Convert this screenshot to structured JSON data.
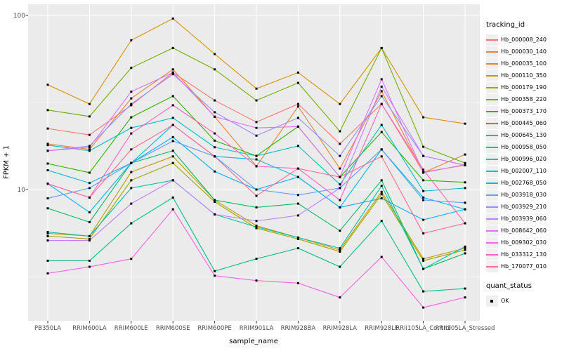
{
  "figure": {
    "y_axis": {
      "label": "FPKM + 1",
      "ticks": [
        {
          "value": 100,
          "label": "100"
        },
        {
          "value": 10,
          "label": "10"
        }
      ]
    },
    "x_axis": {
      "label": "sample_name"
    }
  },
  "legend_tracking": {
    "title": "tracking_id"
  },
  "legend_quant": {
    "title": "quant_status",
    "items": [
      {
        "label": "OK",
        "marker": "black-square"
      }
    ]
  },
  "chart_data": {
    "type": "line",
    "title": "",
    "xlabel": "sample_name",
    "ylabel": "FPKM + 1",
    "y_scale": "log10",
    "ylim": [
      1.78,
      116
    ],
    "y_ticks": [
      10,
      100
    ],
    "y_minor": [
      3.162,
      31.62
    ],
    "grid": true,
    "legend_position": "right",
    "point_shape": "black-square",
    "point_legend": {
      "title": "quant_status",
      "label": "OK"
    },
    "categories": [
      "PB350LA",
      "RRIM600LA",
      "RRIM600LE",
      "RRIM600SE",
      "RRIM600PE",
      "RRIM901LA",
      "RRIM928BA",
      "RRIM928LA",
      "RRIM928LE",
      "RRII105LA_Control",
      "RRII105LA_Stressed"
    ],
    "series": [
      {
        "name": "Hb_000008_240",
        "color": "#F8766D",
        "values": [
          22.4,
          20.6,
          30.5,
          47,
          32.5,
          24.4,
          31,
          18.3,
          31,
          12.6,
          13.8
        ]
      },
      {
        "name": "Hb_000030_140",
        "color": "#EA8331",
        "values": [
          18.3,
          17,
          33.4,
          49,
          26.2,
          13.6,
          30,
          13.2,
          36.7,
          12.5,
          15.9
        ]
      },
      {
        "name": "Hb_000035_100",
        "color": "#D89000",
        "values": [
          40,
          31,
          72,
          96,
          60,
          38,
          47,
          31,
          65,
          26,
          23.9
        ]
      },
      {
        "name": "Hb_000110_350",
        "color": "#BF9C00",
        "values": [
          5.6,
          5.4,
          12.6,
          15.5,
          8.7,
          6.2,
          5.3,
          4.5,
          9.7,
          4,
          4.6
        ]
      },
      {
        "name": "Hb_000179_190",
        "color": "#9DA700",
        "values": [
          5.4,
          5.2,
          11.3,
          14.2,
          8.5,
          6,
          5.2,
          4.4,
          9.4,
          3.9,
          4.5
        ]
      },
      {
        "name": "Hb_000358_220",
        "color": "#6FB000",
        "values": [
          28.6,
          26.3,
          50,
          65,
          49,
          32.5,
          41,
          21.6,
          65,
          17.6,
          14.2
        ]
      },
      {
        "name": "Hb_000373_170",
        "color": "#2CB600",
        "values": [
          14.1,
          12.5,
          26,
          34.4,
          19.1,
          15.6,
          23,
          11.8,
          21.4,
          11.3,
          11
        ]
      },
      {
        "name": "Hb_000445_060",
        "color": "#00BD5C",
        "values": [
          7.8,
          6.5,
          14.2,
          16.7,
          8.7,
          7.9,
          8.3,
          5.8,
          11.3,
          3.5,
          4.3
        ]
      },
      {
        "name": "Hb_000645_130",
        "color": "#00C085",
        "values": [
          3.9,
          3.9,
          6.4,
          9,
          3.4,
          4,
          4.6,
          3.6,
          6.6,
          2.6,
          2.7
        ]
      },
      {
        "name": "Hb_000958_050",
        "color": "#00C1A7",
        "values": [
          5.7,
          5.4,
          10.2,
          11.3,
          7.2,
          6.1,
          5.3,
          4.6,
          10.5,
          3.5,
          4.7
        ]
      },
      {
        "name": "Hb_000996_020",
        "color": "#00BFC4",
        "values": [
          18,
          16.7,
          22.6,
          25.8,
          17.5,
          15.6,
          17.8,
          10.7,
          23.5,
          9.8,
          10.2
        ]
      },
      {
        "name": "Hb_002007_110",
        "color": "#00BAE2",
        "values": [
          12.9,
          10.9,
          14.2,
          23.5,
          15.5,
          14.9,
          11.8,
          7.9,
          17,
          9,
          7.7
        ]
      },
      {
        "name": "Hb_002768_050",
        "color": "#00B2F3",
        "values": [
          10.8,
          7.4,
          14.2,
          20,
          12.7,
          10,
          11.8,
          7.9,
          8.9,
          6.7,
          7.7
        ]
      },
      {
        "name": "Hb_003918_030",
        "color": "#629DFF",
        "values": [
          8.9,
          10.2,
          14.2,
          19,
          15.5,
          10,
          9.3,
          10.2,
          17,
          8.7,
          8.4
        ]
      },
      {
        "name": "Hb_003929_210",
        "color": "#9590FF",
        "values": [
          16.7,
          17.8,
          31,
          46,
          27.8,
          20.4,
          25.8,
          15.6,
          34.4,
          15.6,
          13.8
        ]
      },
      {
        "name": "Hb_003939_060",
        "color": "#C17EFF",
        "values": [
          5.1,
          5.1,
          8.3,
          11.3,
          7.2,
          6.6,
          7.1,
          10.2,
          39,
          15.6,
          13.8
        ]
      },
      {
        "name": "Hb_008642_060",
        "color": "#DF70F8",
        "values": [
          16.7,
          17.5,
          36.5,
          47,
          26.2,
          22.6,
          23,
          11.8,
          43,
          12.5,
          13.9
        ]
      },
      {
        "name": "Hb_009302_030",
        "color": "#F265E4",
        "values": [
          3.3,
          3.6,
          4,
          7.7,
          3.2,
          3,
          2.9,
          2.4,
          4.1,
          2.1,
          2.4
        ]
      },
      {
        "name": "Hb_033312_130",
        "color": "#FF61C7",
        "values": [
          10.8,
          9,
          21,
          30.5,
          21,
          13.6,
          13.2,
          8.7,
          31,
          13,
          6.4
        ]
      },
      {
        "name": "Hb_170077_010",
        "color": "#FF6B94",
        "values": [
          10.8,
          9,
          17,
          23.5,
          15.5,
          9.2,
          13.2,
          11.8,
          15.5,
          5.6,
          6.4
        ]
      }
    ]
  }
}
